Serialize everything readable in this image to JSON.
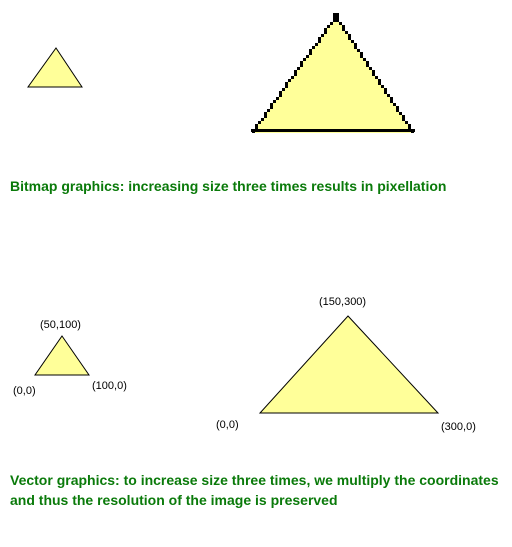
{
  "colors": {
    "triangle_fill": "#ffff99",
    "outline": "#000000",
    "caption_text": "#0a7a0a"
  },
  "bitmap_section": {
    "caption": "Bitmap graphics: increasing size three times results in pixellation"
  },
  "vector_section": {
    "small_triangle": {
      "apex_label": "(50,100)",
      "left_label": "(0,0)",
      "right_label": "(100,0)"
    },
    "large_triangle": {
      "apex_label": "(150,300)",
      "left_label": "(0,0)",
      "right_label": "(300,0)"
    },
    "caption": "Vector graphics: to increase size three times, we multiply the coordinates and thus the resolution of the image is preserved"
  }
}
